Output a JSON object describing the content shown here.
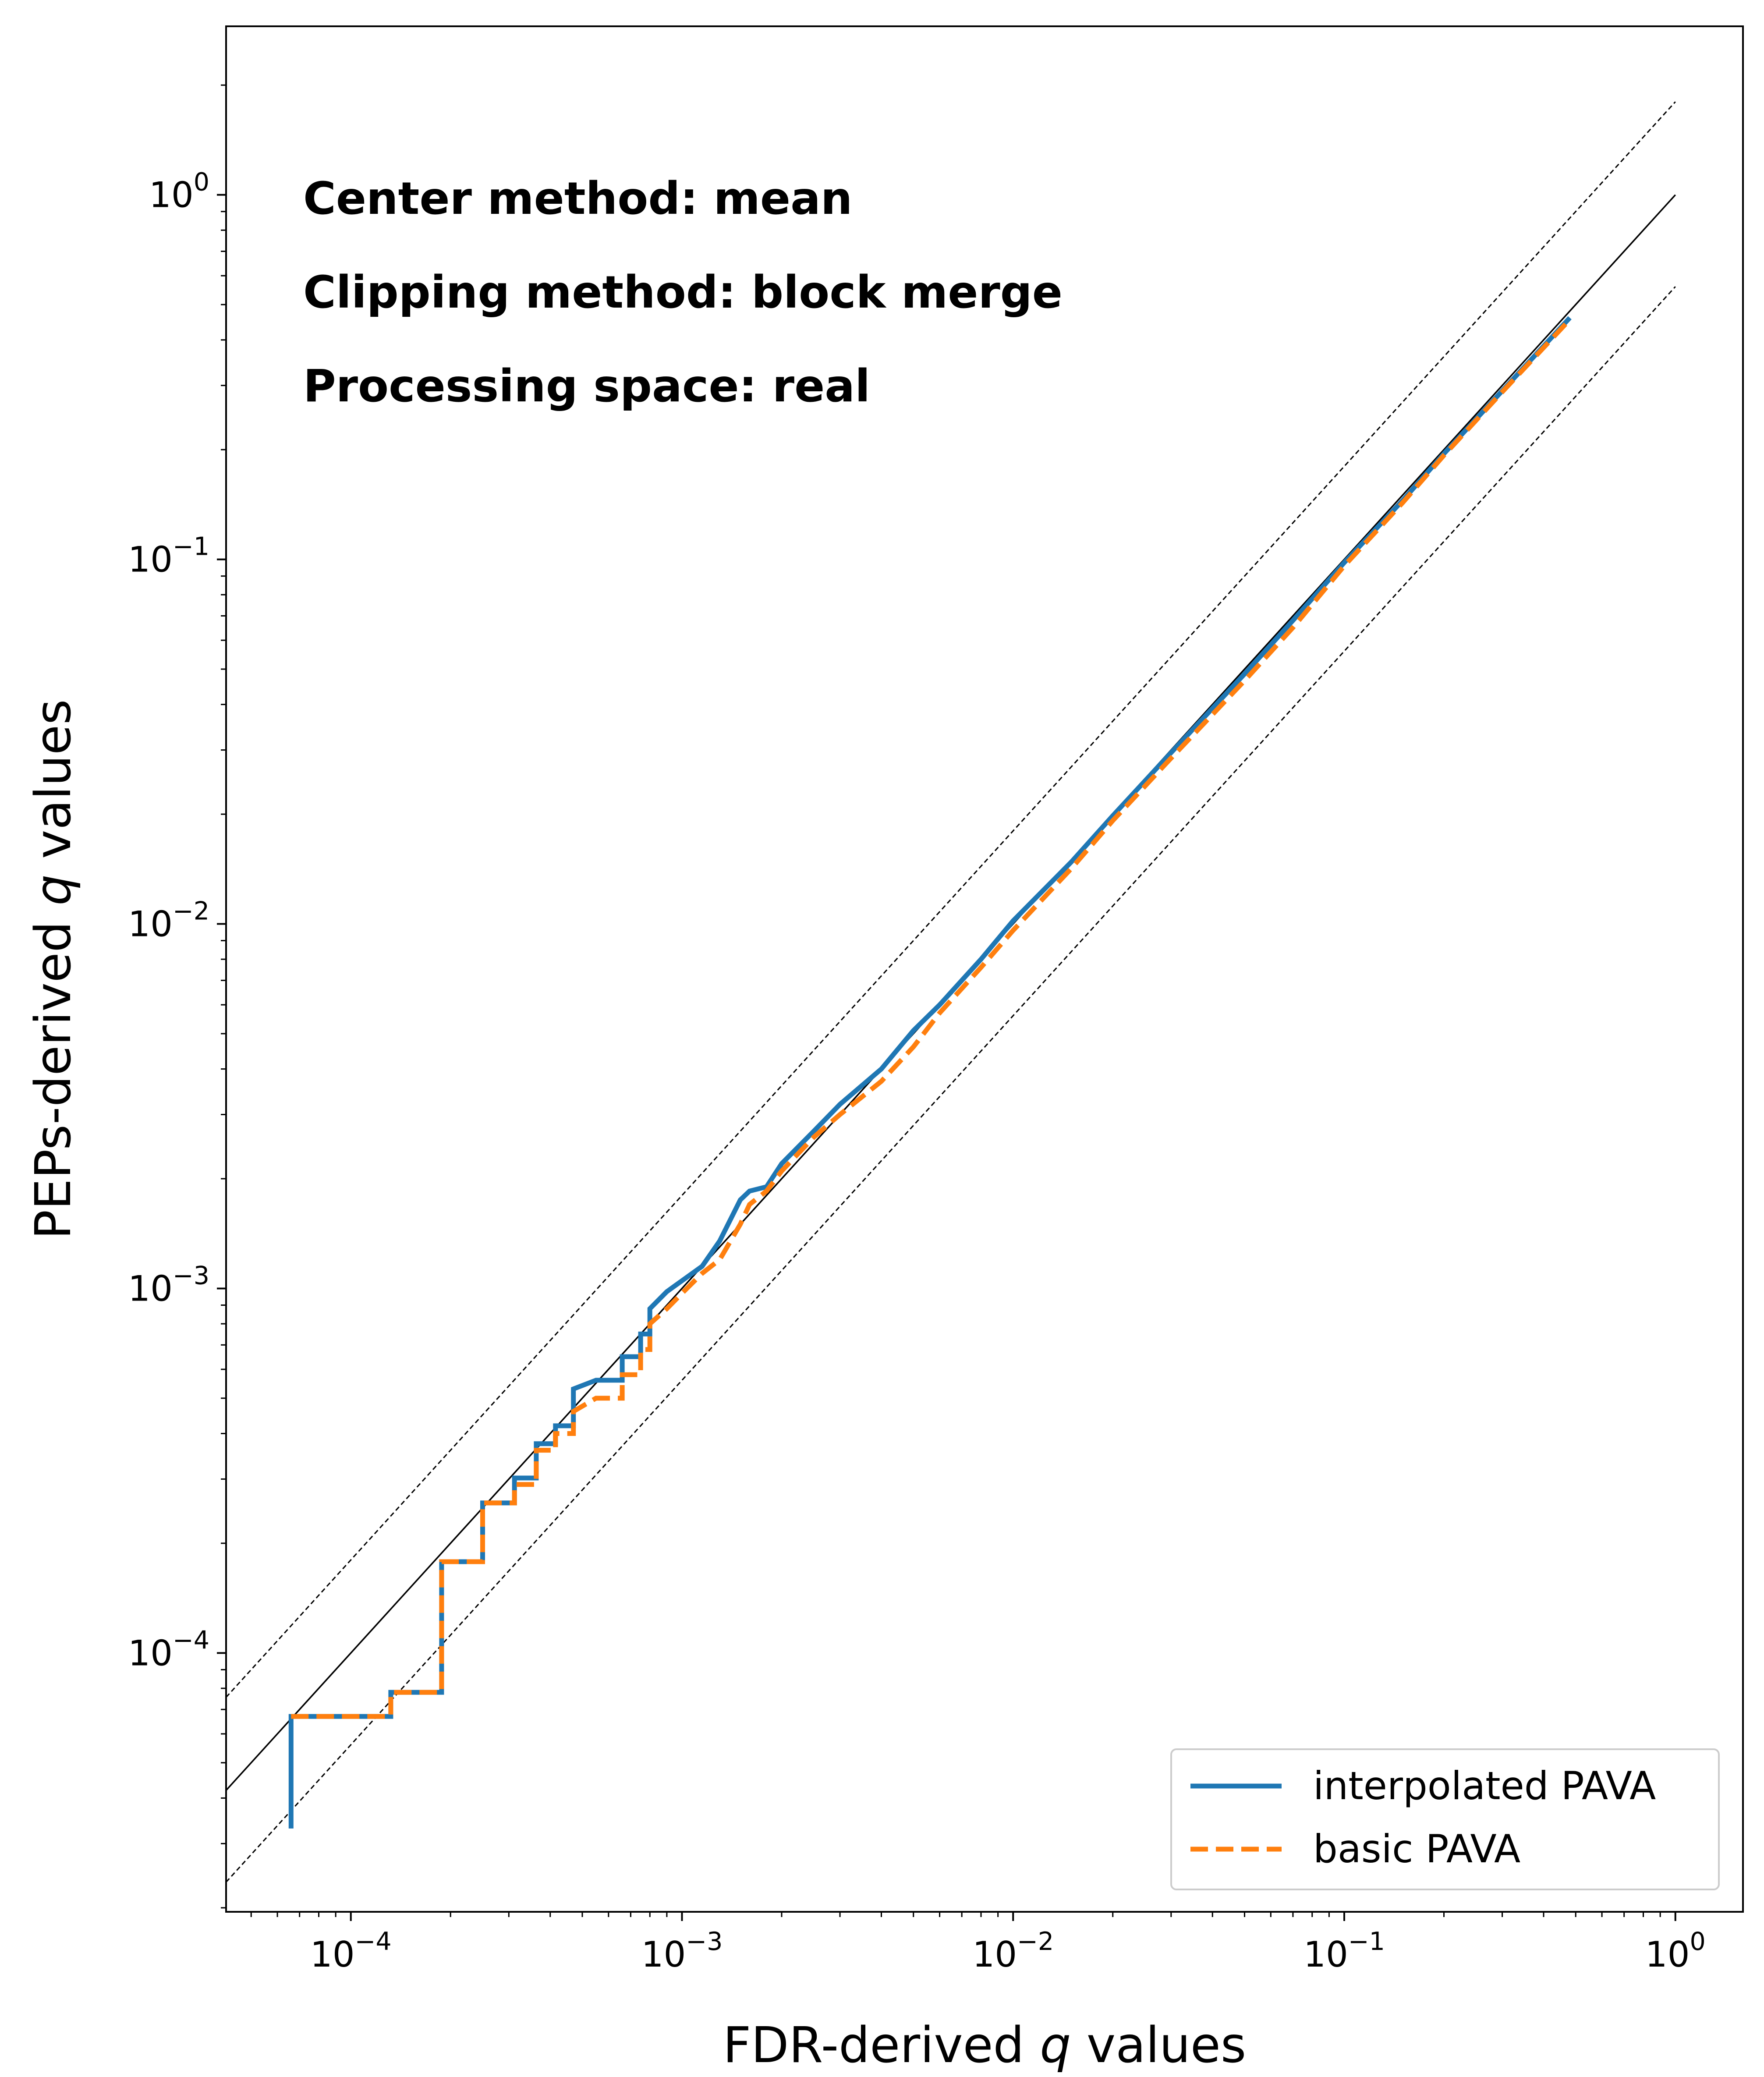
{
  "chart_data": {
    "type": "line",
    "title": "",
    "xlabel_prefix": "FDR-derived ",
    "xlabel_var": "q",
    "xlabel_suffix": " values",
    "ylabel_prefix": "PEPs-derived ",
    "ylabel_var": "q",
    "ylabel_suffix": " values",
    "xscale": "log",
    "yscale": "log",
    "xlim": [
      4.2e-05,
      1.6
    ],
    "ylim": [
      1.95e-05,
      2.9
    ],
    "x_ticks": [
      {
        "exp": "−4",
        "value": 0.0001
      },
      {
        "exp": "−3",
        "value": 0.001
      },
      {
        "exp": "−2",
        "value": 0.01
      },
      {
        "exp": "−1",
        "value": 0.1
      },
      {
        "exp": "0",
        "value": 1
      }
    ],
    "y_ticks": [
      {
        "exp": "−4",
        "value": 0.0001
      },
      {
        "exp": "−3",
        "value": 0.001
      },
      {
        "exp": "−2",
        "value": 0.01
      },
      {
        "exp": "−1",
        "value": 0.1
      },
      {
        "exp": "0",
        "value": 1
      }
    ],
    "tick_base": "10",
    "grid": false,
    "legend_position": "bottom-right",
    "annotations": [
      "Center method: mean",
      "Clipping method: block merge",
      "Processing space: real"
    ],
    "reference_lines": [
      {
        "name": "identity",
        "factor": 1,
        "style": "solid",
        "color": "#000000"
      },
      {
        "name": "upper bound",
        "factor": 1.8,
        "style": "dashed",
        "color": "#000000"
      },
      {
        "name": "lower bound",
        "factor": 0.56,
        "style": "dashed",
        "color": "#000000"
      }
    ],
    "series": [
      {
        "name": "interpolated PAVA",
        "color": "#1f77b4",
        "style": "solid",
        "x": [
          6.6e-05,
          6.6e-05,
          0.000132,
          0.000132,
          0.000188,
          0.000188,
          0.00025,
          0.00025,
          0.000312,
          0.000312,
          0.000363,
          0.000363,
          0.000415,
          0.000415,
          0.00047,
          0.00047,
          0.00055,
          0.00066,
          0.00066,
          0.00075,
          0.00075,
          0.0008,
          0.0008,
          0.0009,
          0.001,
          0.00115,
          0.0013,
          0.0015,
          0.0016,
          0.0018,
          0.002,
          0.0025,
          0.003,
          0.004,
          0.005,
          0.006,
          0.008,
          0.01,
          0.015,
          0.02,
          0.03,
          0.05,
          0.07,
          0.1,
          0.15,
          0.2,
          0.3,
          0.48
        ],
        "y": [
          3.3e-05,
          6.7e-05,
          6.7e-05,
          7.8e-05,
          7.8e-05,
          0.000178,
          0.000178,
          0.000258,
          0.000258,
          0.000302,
          0.000302,
          0.000375,
          0.000375,
          0.00042,
          0.00042,
          0.00053,
          0.00056,
          0.00056,
          0.00065,
          0.00065,
          0.00075,
          0.00075,
          0.00088,
          0.00098,
          0.00105,
          0.00115,
          0.00135,
          0.00175,
          0.00185,
          0.0019,
          0.0022,
          0.0027,
          0.0032,
          0.004,
          0.0051,
          0.006,
          0.008,
          0.0102,
          0.0148,
          0.0198,
          0.0295,
          0.0485,
          0.068,
          0.098,
          0.145,
          0.195,
          0.29,
          0.46
        ]
      },
      {
        "name": "basic PAVA",
        "color": "#ff7f0e",
        "style": "dashed",
        "x": [
          6.6e-05,
          0.000132,
          0.000132,
          0.000188,
          0.000188,
          0.00025,
          0.00025,
          0.000312,
          0.000312,
          0.000363,
          0.000363,
          0.000415,
          0.000415,
          0.00047,
          0.00047,
          0.00055,
          0.00066,
          0.00066,
          0.00075,
          0.00075,
          0.0008,
          0.0008,
          0.0009,
          0.001,
          0.00115,
          0.0013,
          0.0015,
          0.0016,
          0.0018,
          0.002,
          0.0025,
          0.003,
          0.004,
          0.005,
          0.006,
          0.008,
          0.01,
          0.015,
          0.02,
          0.03,
          0.05,
          0.07,
          0.1,
          0.15,
          0.2,
          0.3,
          0.48
        ],
        "y": [
          6.7e-05,
          6.7e-05,
          7.8e-05,
          7.8e-05,
          0.000178,
          0.000178,
          0.000258,
          0.000258,
          0.00029,
          0.00029,
          0.00036,
          0.00036,
          0.0004,
          0.0004,
          0.00046,
          0.0005,
          0.0005,
          0.00058,
          0.00058,
          0.00068,
          0.00068,
          0.0008,
          0.00088,
          0.00097,
          0.0011,
          0.0012,
          0.0015,
          0.0017,
          0.00185,
          0.0021,
          0.0026,
          0.003,
          0.0037,
          0.0046,
          0.0057,
          0.0076,
          0.0096,
          0.0142,
          0.0192,
          0.0285,
          0.0465,
          0.065,
          0.096,
          0.143,
          0.193,
          0.288,
          0.455
        ]
      }
    ]
  }
}
